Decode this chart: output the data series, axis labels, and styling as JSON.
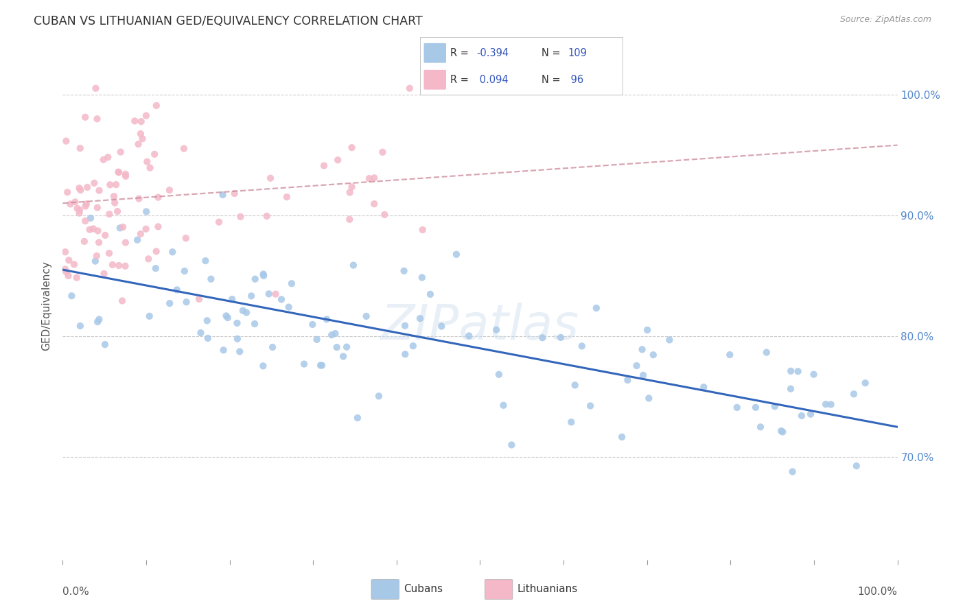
{
  "title": "CUBAN VS LITHUANIAN GED/EQUIVALENCY CORRELATION CHART",
  "source": "Source: ZipAtlas.com",
  "ylabel": "GED/Equivalency",
  "xmin": 0.0,
  "xmax": 1.0,
  "ymin": 0.615,
  "ymax": 1.035,
  "blue_R": -0.394,
  "blue_N": 109,
  "pink_R": 0.094,
  "pink_N": 96,
  "blue_color": "#a8c8e8",
  "pink_color": "#f4b8c8",
  "blue_line_color": "#3366bb",
  "pink_line_color": "#cc6677",
  "pink_dashed_color": "#cc8899",
  "background_color": "#ffffff",
  "grid_color": "#cccccc",
  "title_color": "#333333",
  "axis_label_color": "#555555",
  "right_axis_color": "#5588cc",
  "legend_text_color": "#3355bb",
  "blue_intercept": 0.855,
  "blue_slope": -0.13,
  "pink_intercept": 0.91,
  "pink_slope": 0.048,
  "watermark": "ZIPatlas"
}
